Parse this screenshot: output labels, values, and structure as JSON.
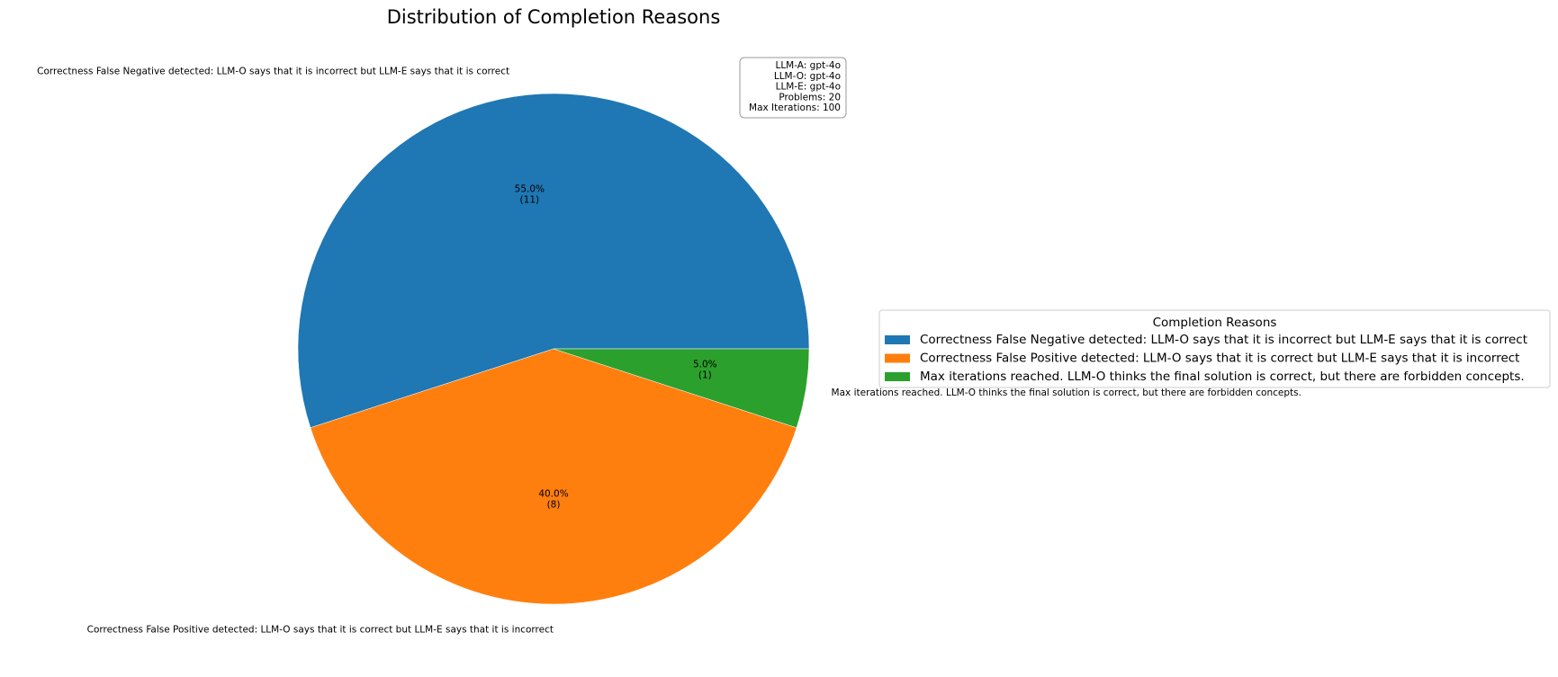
{
  "chart_data": {
    "type": "pie",
    "title": "Distribution of Completion Reasons",
    "slices": [
      {
        "label": "Correctness False Negative detected: LLM-O says that it is incorrect but LLM-E says that it is correct",
        "value": 11,
        "percent_label": "55.0%",
        "count_label": "(11)",
        "color": "#1f77b4"
      },
      {
        "label": "Correctness False Positive detected: LLM-O says that it is correct but LLM-E says that it is incorrect",
        "value": 8,
        "percent_label": "40.0%",
        "count_label": "(8)",
        "color": "#ff7f0e"
      },
      {
        "label": "Max iterations reached. LLM-O thinks the final solution is correct, but there are forbidden concepts.",
        "value": 1,
        "percent_label": "5.0%",
        "count_label": "(1)",
        "color": "#2ca02c"
      }
    ],
    "legend": {
      "title": "Completion Reasons",
      "placement": "center-right"
    },
    "info_box": [
      "LLM-A: gpt-4o",
      "LLM-O: gpt-4o",
      "LLM-E: gpt-4o",
      "Problems: 20",
      "Max Iterations: 100"
    ]
  }
}
